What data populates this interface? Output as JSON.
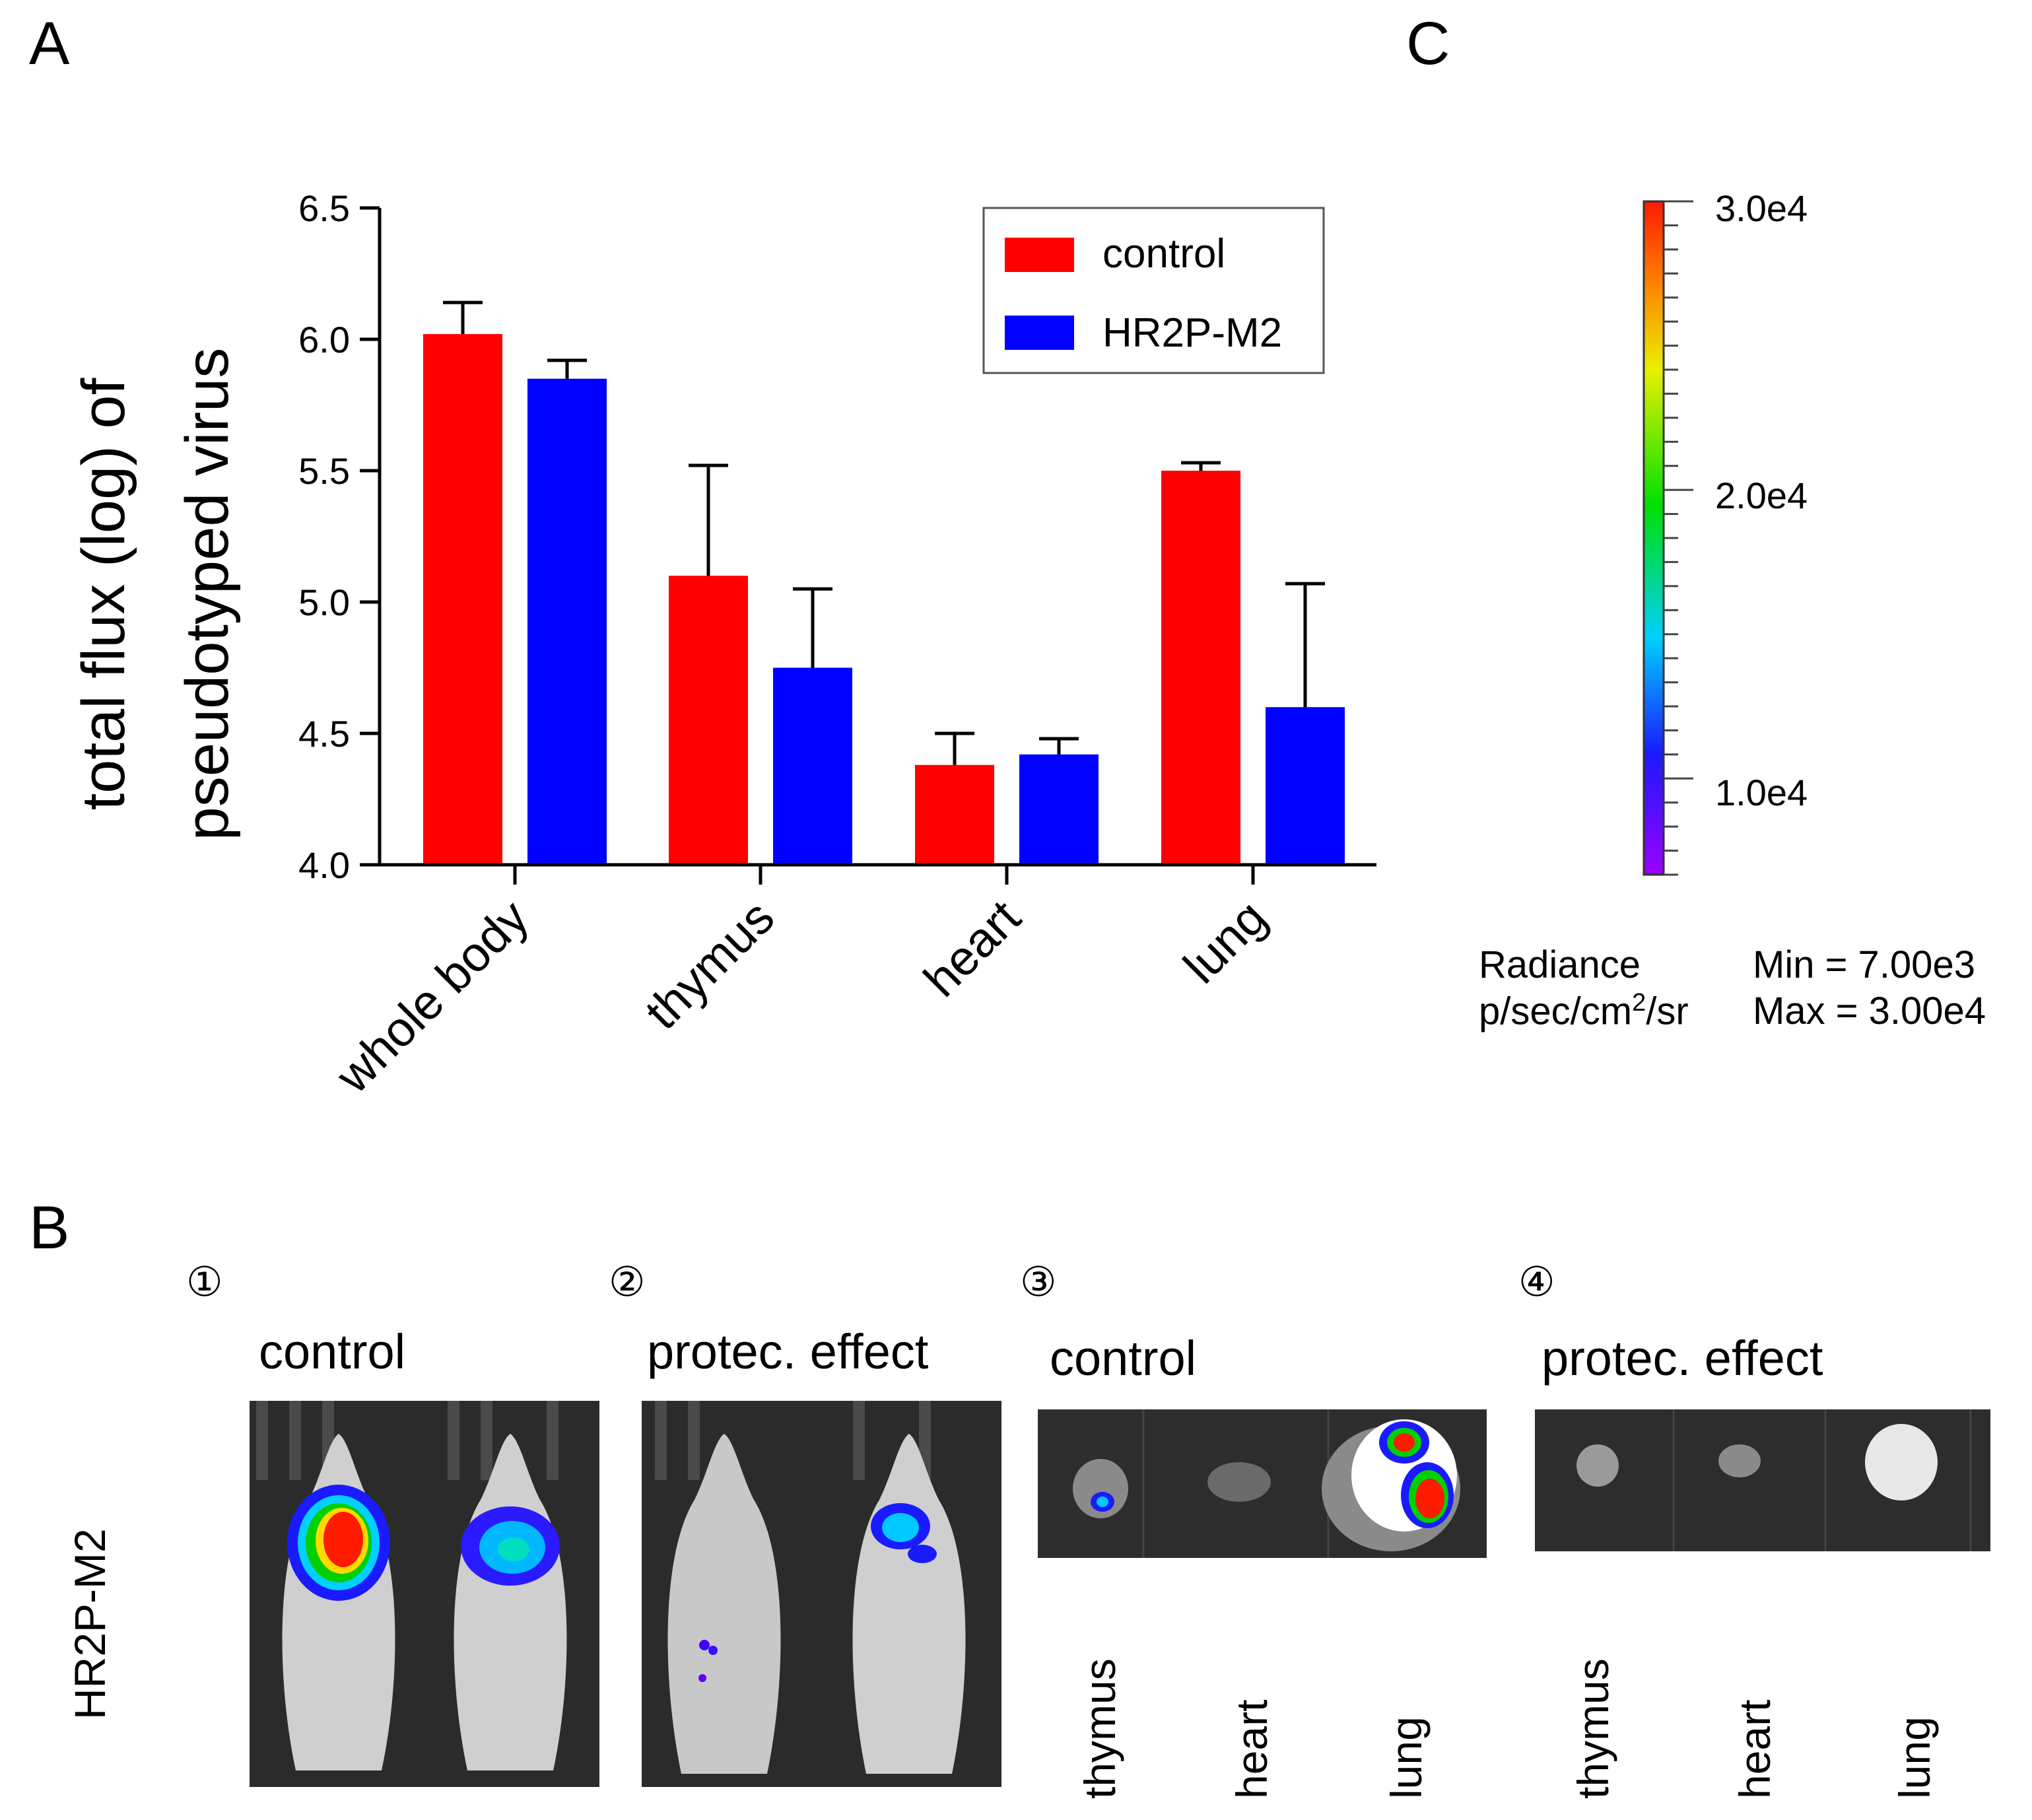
{
  "panels": {
    "a_letter": "A",
    "b_letter": "B",
    "c_letter": "C"
  },
  "chart_data": {
    "type": "bar",
    "categories": [
      "whole body",
      "thymus",
      "heart",
      "lung"
    ],
    "series": [
      {
        "name": "control",
        "color": "#ff0000",
        "values": [
          6.02,
          5.1,
          4.38,
          5.5
        ],
        "errors": [
          0.12,
          0.42,
          0.12,
          0.03
        ]
      },
      {
        "name": "HR2P-M2",
        "color": "#0000ff",
        "values": [
          5.85,
          4.75,
          4.42,
          4.6
        ],
        "errors": [
          0.07,
          0.3,
          0.06,
          0.47
        ]
      }
    ],
    "ylabel_line1": "total flux (log) of",
    "ylabel_line2": "pseudotyped virus",
    "ylim": [
      4.0,
      6.5
    ],
    "yticks": [
      "4.0",
      "4.5",
      "5.0",
      "5.5",
      "6.0",
      "6.5"
    ],
    "legend_position": "top-right"
  },
  "colorbar": {
    "ticks": [
      "3.0e4",
      "2.0e4",
      "1.0e4"
    ],
    "radiance_label": "Radiance",
    "unit_prefix": "p/sec/cm",
    "unit_exp": "2",
    "unit_suffix": "/sr",
    "min_label": "Min = 7.00e3",
    "max_label": "Max = 3.00e4"
  },
  "panel_b": {
    "row_label": "HR2P-M2",
    "items": [
      {
        "num": "①",
        "title": "control"
      },
      {
        "num": "②",
        "title": "protec. effect"
      },
      {
        "num": "③",
        "title": "control"
      },
      {
        "num": "④",
        "title": "protec. effect"
      }
    ],
    "organs_3": [
      "thymus",
      "heart",
      "lung"
    ],
    "organs_4": [
      "thymus",
      "heart",
      "lung"
    ]
  }
}
